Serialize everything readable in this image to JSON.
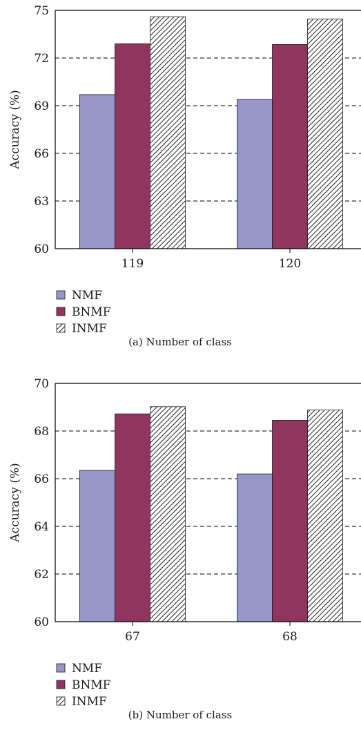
{
  "colors": {
    "NMF": "#9696c8",
    "BNMF": "#8f3560",
    "INMF_stroke": "#1a1a1a",
    "INMF_fill": "#ffffff",
    "axis": "#000000",
    "grid": "#000000"
  },
  "chart_data": [
    {
      "type": "bar",
      "categories": [
        "119",
        "120"
      ],
      "series": [
        {
          "name": "NMF",
          "values": [
            69.7,
            69.4
          ],
          "pattern": "solid"
        },
        {
          "name": "BNMF",
          "values": [
            72.9,
            72.85
          ],
          "pattern": "solid"
        },
        {
          "name": "INMF",
          "values": [
            74.6,
            74.45
          ],
          "pattern": "hatched"
        }
      ],
      "ylim": [
        60,
        75
      ],
      "yticks": [
        60,
        63,
        66,
        69,
        72,
        75
      ],
      "ylabel": "Accuracy (%)",
      "xlabel": "",
      "grid": "horizontal-dashed",
      "legend_placement": "below-left",
      "caption": "(a)  Number of class"
    },
    {
      "type": "bar",
      "categories": [
        "67",
        "68"
      ],
      "series": [
        {
          "name": "NMF",
          "values": [
            66.35,
            66.2
          ],
          "pattern": "solid"
        },
        {
          "name": "BNMF",
          "values": [
            68.72,
            68.45
          ],
          "pattern": "solid"
        },
        {
          "name": "INMF",
          "values": [
            69.02,
            68.88
          ],
          "pattern": "hatched"
        }
      ],
      "ylim": [
        60,
        70
      ],
      "yticks": [
        60,
        62,
        64,
        66,
        68,
        70
      ],
      "ylabel": "Accuracy (%)",
      "xlabel": "",
      "grid": "horizontal-dashed",
      "legend_placement": "below-left",
      "caption": "(b)  Number of class"
    }
  ]
}
